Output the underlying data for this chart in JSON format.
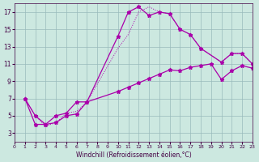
{
  "xlabel": "Windchill (Refroidissement éolien,°C)",
  "bg_color": "#cce8e0",
  "line_color": "#aa00aa",
  "grid_color": "#99bbbb",
  "xlim": [
    0,
    23
  ],
  "ylim": [
    2,
    18
  ],
  "xticks": [
    0,
    1,
    2,
    3,
    4,
    5,
    6,
    7,
    8,
    9,
    10,
    11,
    12,
    13,
    14,
    15,
    16,
    17,
    18,
    19,
    20,
    21,
    22,
    23
  ],
  "yticks": [
    3,
    5,
    7,
    9,
    11,
    13,
    15,
    17
  ],
  "curve1_x": [
    1,
    2,
    3,
    4,
    5,
    6,
    7,
    10,
    11,
    12,
    13,
    14,
    15,
    16,
    17,
    18,
    20,
    21,
    22,
    23
  ],
  "curve1_y": [
    7,
    5,
    4,
    5,
    5.3,
    6.6,
    6.6,
    14.2,
    17.0,
    17.6,
    16.6,
    17.0,
    16.8,
    15.0,
    14.4,
    12.8,
    11.2,
    12.2,
    12.2,
    11.0
  ],
  "curve2_x": [
    1,
    2,
    3,
    4,
    5,
    6,
    7,
    10,
    11,
    12,
    13,
    14,
    15,
    16,
    17,
    18,
    20,
    21,
    22,
    23
  ],
  "curve2_y": [
    7,
    5,
    3.8,
    4.2,
    5.3,
    5.5,
    6.6,
    12.8,
    14.4,
    17.0,
    17.6,
    17.0,
    16.8,
    15.0,
    14.4,
    12.8,
    11.2,
    12.2,
    12.2,
    11.0
  ],
  "curve3_x": [
    1,
    2,
    3,
    4,
    5,
    6,
    7,
    10,
    11,
    12,
    13,
    14,
    15,
    16,
    17,
    18,
    19,
    20,
    21,
    22,
    23
  ],
  "curve3_y": [
    7,
    4,
    4,
    4.2,
    5.0,
    5.2,
    6.6,
    7.8,
    8.3,
    8.8,
    9.3,
    9.8,
    10.3,
    10.2,
    10.6,
    10.8,
    11.0,
    9.2,
    10.2,
    10.8,
    10.5
  ],
  "spine_color": "#440044",
  "tick_color": "#440044",
  "xlabel_fontsize": 5.5,
  "tick_fontsize_x": 4.5,
  "tick_fontsize_y": 5.5
}
